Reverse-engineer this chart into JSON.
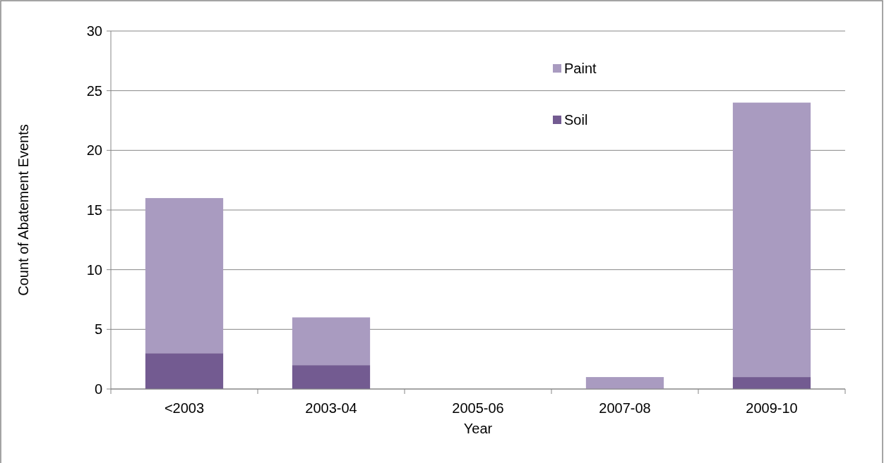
{
  "chart_data": {
    "type": "bar",
    "xlabel": "Year",
    "ylabel": "Count of Abatement Events",
    "categories": [
      "<2003",
      "2003-04",
      "2005-06",
      "2007-08",
      "2009-10"
    ],
    "stacked": true,
    "series": [
      {
        "name": "Soil",
        "color": "#735b91",
        "values": [
          3,
          2,
          0,
          0,
          1
        ]
      },
      {
        "name": "Paint",
        "color": "#a99bc0",
        "values": [
          13,
          4,
          0,
          1,
          23
        ]
      }
    ],
    "ylim": [
      0,
      30
    ],
    "yticks": [
      0,
      5,
      10,
      15,
      20,
      25,
      30
    ],
    "grid": "y",
    "legend": "top right"
  }
}
